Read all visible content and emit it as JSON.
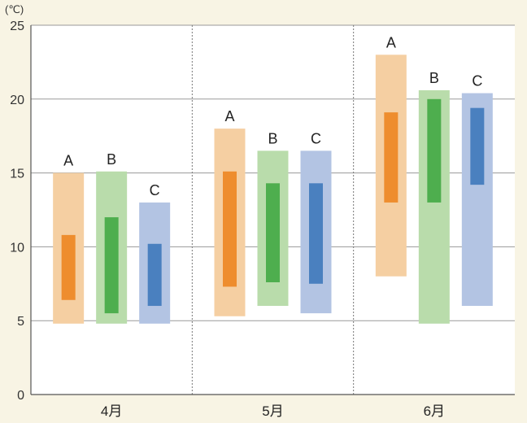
{
  "chart_data": {
    "type": "bar",
    "unit": "(℃)",
    "ylim": [
      0,
      25
    ],
    "yticks": [
      0,
      5,
      10,
      15,
      20,
      25
    ],
    "grid": true,
    "categories": [
      "4月",
      "5月",
      "6月"
    ],
    "series": [
      {
        "name": "A",
        "outer_color": "#f5cfa2",
        "inner_color": "#ee8d2e",
        "ranges": [
          {
            "outer": [
              4.8,
              15.0
            ],
            "inner": [
              6.4,
              10.8
            ]
          },
          {
            "outer": [
              5.3,
              18.0
            ],
            "inner": [
              7.3,
              15.1
            ]
          },
          {
            "outer": [
              8.0,
              23.0
            ],
            "inner": [
              13.0,
              19.1
            ]
          }
        ]
      },
      {
        "name": "B",
        "outer_color": "#b9dcab",
        "inner_color": "#4eae4e",
        "ranges": [
          {
            "outer": [
              4.8,
              15.1
            ],
            "inner": [
              5.5,
              12.0
            ]
          },
          {
            "outer": [
              6.0,
              16.5
            ],
            "inner": [
              7.6,
              14.3
            ]
          },
          {
            "outer": [
              4.8,
              20.6
            ],
            "inner": [
              13.0,
              20.0
            ]
          }
        ]
      },
      {
        "name": "C",
        "outer_color": "#b3c4e3",
        "inner_color": "#4a80bf",
        "ranges": [
          {
            "outer": [
              4.8,
              13.0
            ],
            "inner": [
              6.0,
              10.2
            ]
          },
          {
            "outer": [
              5.5,
              16.5
            ],
            "inner": [
              7.5,
              14.3
            ]
          },
          {
            "outer": [
              6.0,
              20.4
            ],
            "inner": [
              14.2,
              19.4
            ]
          }
        ]
      }
    ]
  }
}
